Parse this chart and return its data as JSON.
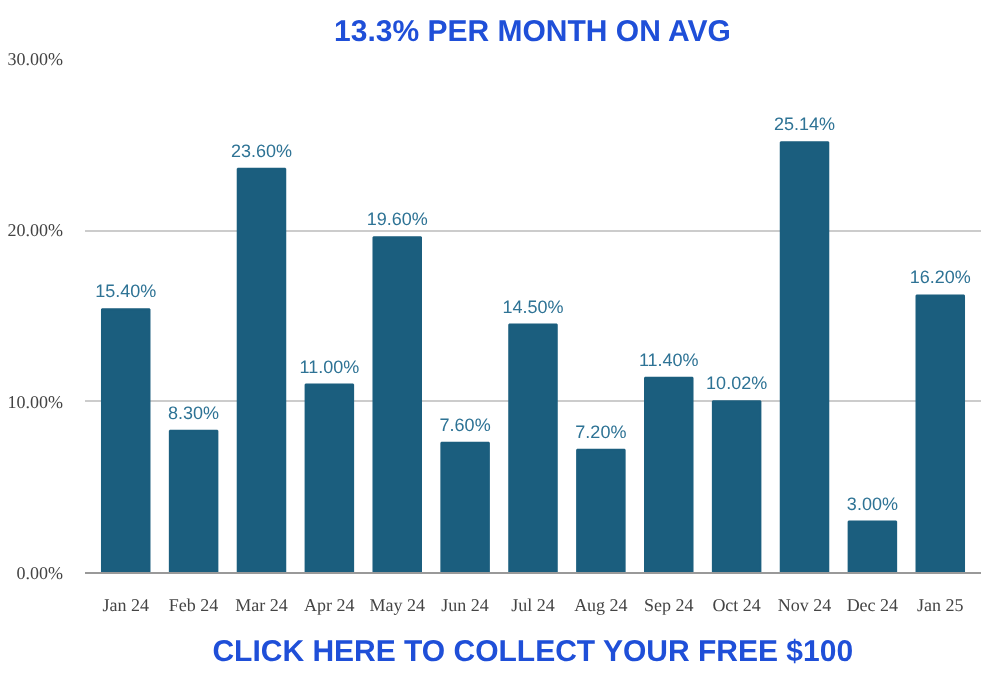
{
  "chart_data": {
    "type": "bar",
    "title": "13.3% PER MONTH ON AVG",
    "categories": [
      "Jan 24",
      "Feb 24",
      "Mar 24",
      "Apr 24",
      "May 24",
      "Jun 24",
      "Jul 24",
      "Aug 24",
      "Sep 24",
      "Oct 24",
      "Nov 24",
      "Dec 24",
      "Jan 25"
    ],
    "values": [
      15.4,
      8.3,
      23.6,
      11.0,
      19.6,
      7.6,
      14.5,
      7.2,
      11.4,
      10.02,
      25.14,
      3.0,
      16.2
    ],
    "value_labels": [
      "15.40%",
      "8.30%",
      "23.60%",
      "11.00%",
      "19.60%",
      "7.60%",
      "14.50%",
      "7.20%",
      "11.40%",
      "10.02%",
      "25.14%",
      "3.00%",
      "16.20%"
    ],
    "color": "#1b5e7e",
    "ylim": [
      0,
      30
    ],
    "yticks": [
      {
        "value": 0,
        "label": "0.00%"
      },
      {
        "value": 10,
        "label": "10.00%"
      },
      {
        "value": 20,
        "label": "20.00%"
      },
      {
        "value": 30,
        "label": "30.00%"
      }
    ],
    "grid": "y",
    "annotations": [
      "CLICK HERE TO COLLECT YOUR FREE $100"
    ]
  }
}
